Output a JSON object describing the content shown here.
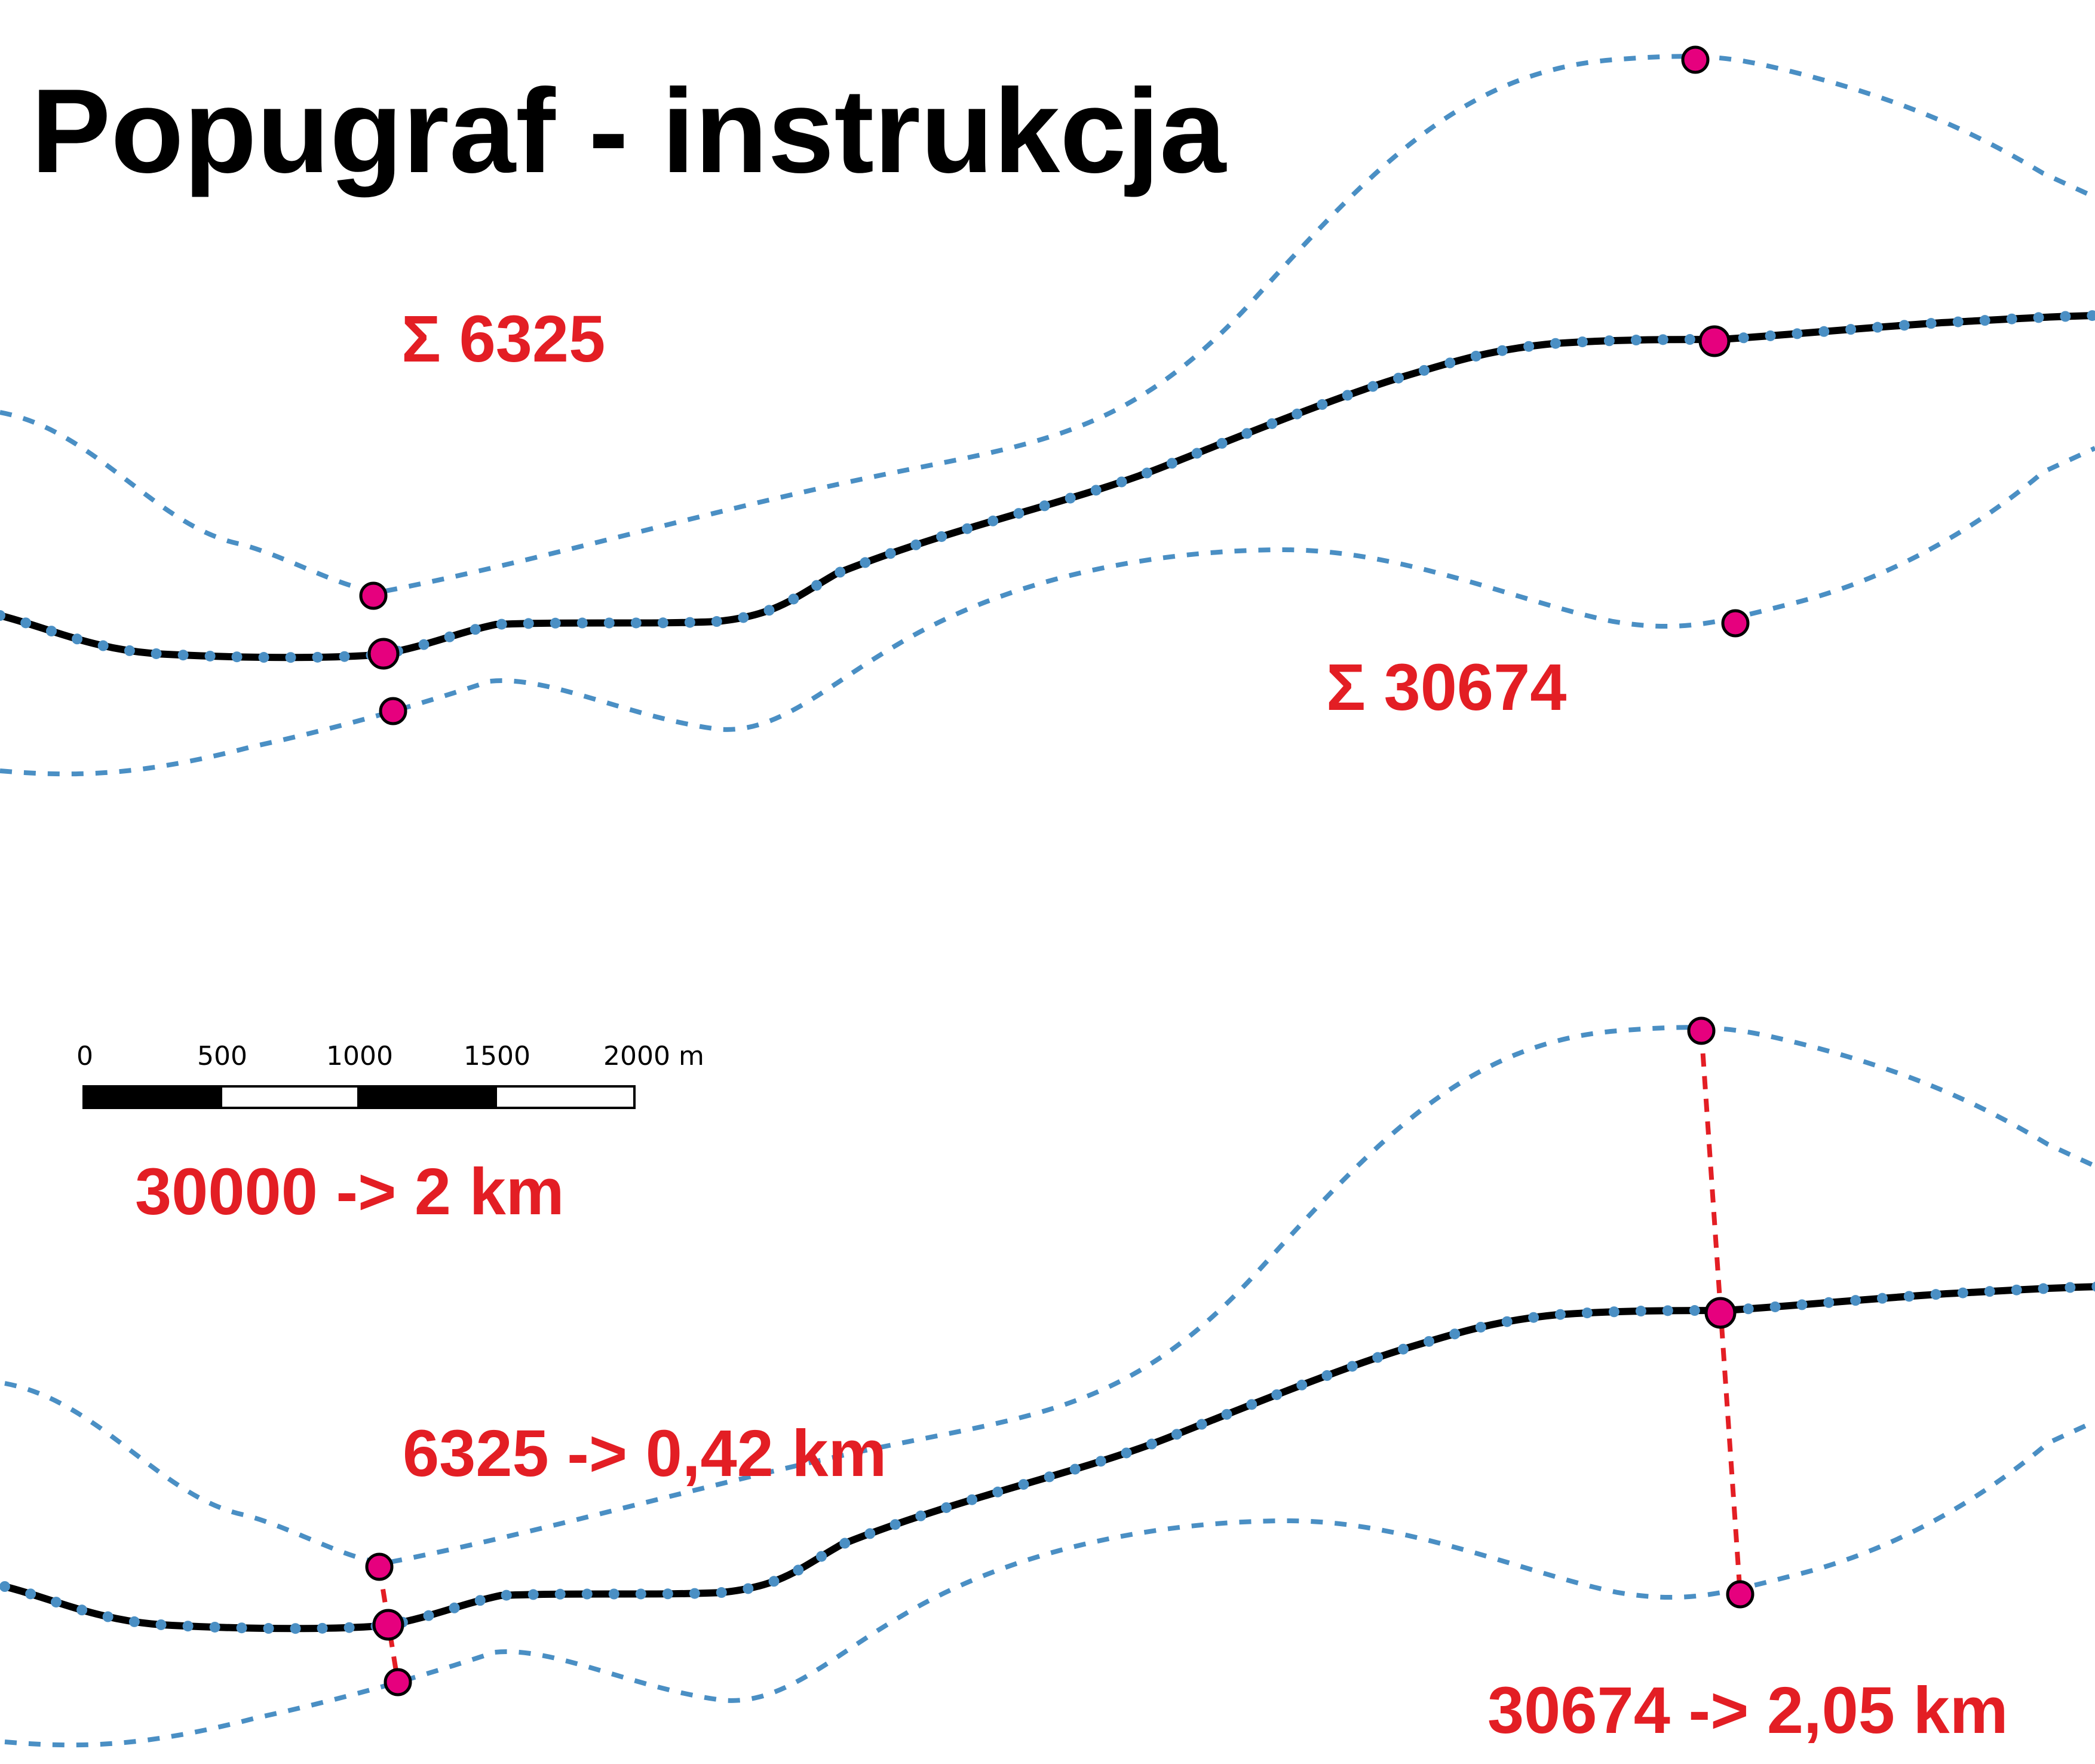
{
  "title": "Popugraf - instrukcja",
  "colors": {
    "annotation": "#e31e24",
    "point_fill": "#e6007e",
    "guide_line": "#4a8fc4",
    "road": "#000000"
  },
  "top_panel": {
    "sum_left": "Σ 6325",
    "sum_right": "Σ 30674"
  },
  "bottom_panel": {
    "scale_conversion": "30000 -> 2 km",
    "left_result": "6325 -> 0,42 km",
    "right_result": "30674 -> 2,05 km"
  },
  "scale_bar": {
    "labels": [
      "0",
      "500",
      "1000",
      "1500",
      "2000 m"
    ],
    "segments": 4
  }
}
